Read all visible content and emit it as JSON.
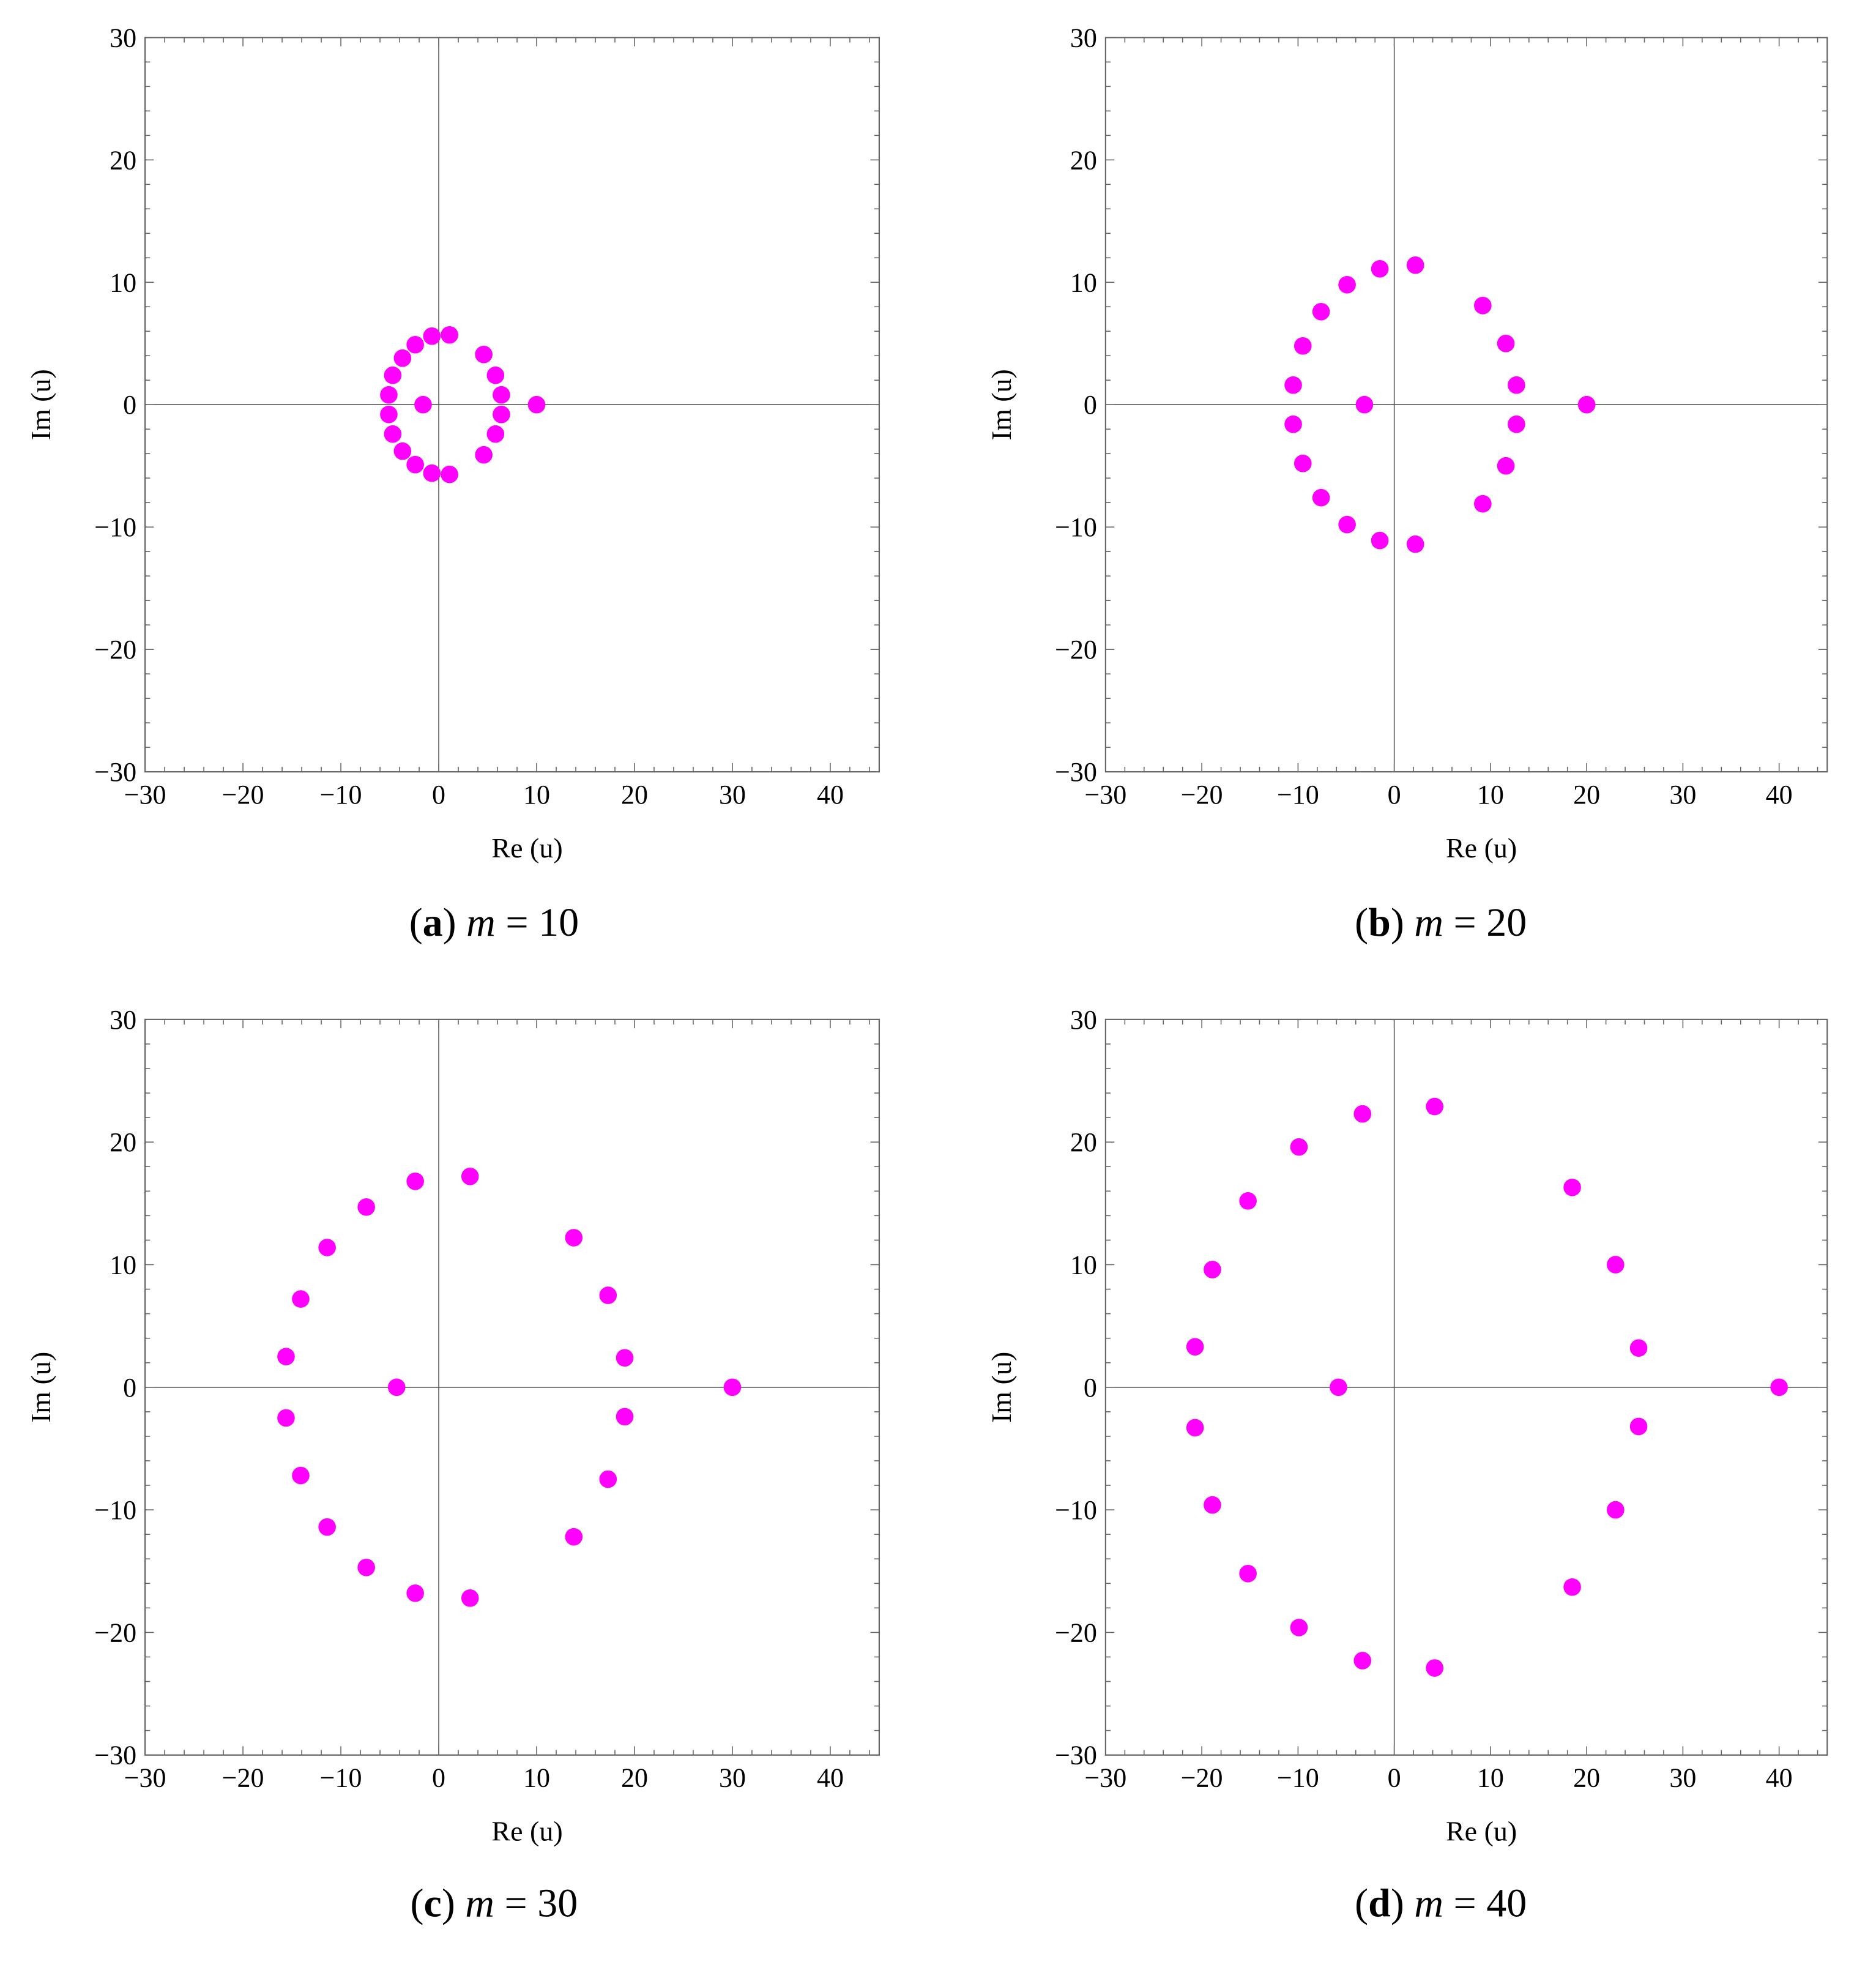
{
  "marker_color": "#ff00ff",
  "chart_data": [
    {
      "type": "scatter",
      "caption_letter": "a",
      "caption_var": "m",
      "caption_value": "10",
      "xlabel": "Re (u)",
      "ylabel": "Im (u)",
      "xlim": [
        -30,
        45
      ],
      "ylim": [
        -30,
        30
      ],
      "xticks": [
        -30,
        -20,
        -10,
        0,
        10,
        20,
        30,
        40
      ],
      "yticks": [
        -30,
        -20,
        -10,
        0,
        10,
        20,
        30
      ],
      "grid": false,
      "points": [
        [
          10,
          0
        ],
        [
          -1.6,
          0
        ],
        [
          1.1,
          5.7
        ],
        [
          -0.7,
          5.6
        ],
        [
          -2.4,
          4.9
        ],
        [
          -3.7,
          3.8
        ],
        [
          -4.7,
          2.4
        ],
        [
          -5.1,
          0.8
        ],
        [
          -5.1,
          -0.8
        ],
        [
          -4.7,
          -2.4
        ],
        [
          -3.7,
          -3.8
        ],
        [
          -2.4,
          -4.9
        ],
        [
          -0.7,
          -5.6
        ],
        [
          1.1,
          -5.7
        ],
        [
          4.6,
          4.1
        ],
        [
          5.8,
          2.4
        ],
        [
          6.4,
          0.8
        ],
        [
          6.4,
          -0.8
        ],
        [
          5.8,
          -2.4
        ],
        [
          4.6,
          -4.1
        ]
      ]
    },
    {
      "type": "scatter",
      "caption_letter": "b",
      "caption_var": "m",
      "caption_value": "20",
      "xlabel": "Re (u)",
      "ylabel": "Im (u)",
      "xlim": [
        -30,
        45
      ],
      "ylim": [
        -30,
        30
      ],
      "xticks": [
        -30,
        -20,
        -10,
        0,
        10,
        20,
        30,
        40
      ],
      "yticks": [
        -30,
        -20,
        -10,
        0,
        10,
        20,
        30
      ],
      "grid": false,
      "points": [
        [
          20,
          0
        ],
        [
          -3.1,
          0
        ],
        [
          2.2,
          11.4
        ],
        [
          -1.5,
          11.1
        ],
        [
          -4.9,
          9.8
        ],
        [
          -7.6,
          7.6
        ],
        [
          -9.5,
          4.8
        ],
        [
          -10.5,
          1.6
        ],
        [
          -10.5,
          -1.6
        ],
        [
          -9.5,
          -4.8
        ],
        [
          -7.6,
          -7.6
        ],
        [
          -4.9,
          -9.8
        ],
        [
          -1.5,
          -11.1
        ],
        [
          2.2,
          -11.4
        ],
        [
          9.2,
          8.1
        ],
        [
          11.6,
          5.0
        ],
        [
          12.7,
          1.6
        ],
        [
          12.7,
          -1.6
        ],
        [
          11.6,
          -5.0
        ],
        [
          9.2,
          -8.1
        ]
      ]
    },
    {
      "type": "scatter",
      "caption_letter": "c",
      "caption_var": "m",
      "caption_value": "30",
      "xlabel": "Re (u)",
      "ylabel": "Im (u)",
      "xlim": [
        -30,
        45
      ],
      "ylim": [
        -30,
        30
      ],
      "xticks": [
        -30,
        -20,
        -10,
        0,
        10,
        20,
        30,
        40
      ],
      "yticks": [
        -30,
        -20,
        -10,
        0,
        10,
        20,
        30
      ],
      "grid": false,
      "points": [
        [
          30,
          0
        ],
        [
          -4.3,
          0
        ],
        [
          3.2,
          17.2
        ],
        [
          -2.4,
          16.8
        ],
        [
          -7.4,
          14.7
        ],
        [
          -11.4,
          11.4
        ],
        [
          -14.1,
          7.2
        ],
        [
          -15.6,
          2.5
        ],
        [
          -15.6,
          -2.5
        ],
        [
          -14.1,
          -7.2
        ],
        [
          -11.4,
          -11.4
        ],
        [
          -7.4,
          -14.7
        ],
        [
          -2.4,
          -16.8
        ],
        [
          3.2,
          -17.2
        ],
        [
          13.8,
          12.2
        ],
        [
          17.3,
          7.5
        ],
        [
          19.0,
          2.4
        ],
        [
          19.0,
          -2.4
        ],
        [
          17.3,
          -7.5
        ],
        [
          13.8,
          -12.2
        ]
      ]
    },
    {
      "type": "scatter",
      "caption_letter": "d",
      "caption_var": "m",
      "caption_value": "40",
      "xlabel": "Re (u)",
      "ylabel": "Im (u)",
      "xlim": [
        -30,
        45
      ],
      "ylim": [
        -30,
        30
      ],
      "xticks": [
        -30,
        -20,
        -10,
        0,
        10,
        20,
        30,
        40
      ],
      "yticks": [
        -30,
        -20,
        -10,
        0,
        10,
        20,
        30
      ],
      "grid": false,
      "points": [
        [
          40,
          0
        ],
        [
          -5.8,
          0
        ],
        [
          4.2,
          22.9
        ],
        [
          -3.3,
          22.3
        ],
        [
          -9.9,
          19.6
        ],
        [
          -15.2,
          15.2
        ],
        [
          -18.9,
          9.6
        ],
        [
          -20.7,
          3.3
        ],
        [
          -20.7,
          -3.3
        ],
        [
          -18.9,
          -9.6
        ],
        [
          -15.2,
          -15.2
        ],
        [
          -9.9,
          -19.6
        ],
        [
          -3.3,
          -22.3
        ],
        [
          4.2,
          -22.9
        ],
        [
          18.5,
          16.3
        ],
        [
          23.0,
          10.0
        ],
        [
          25.4,
          3.2
        ],
        [
          25.4,
          -3.2
        ],
        [
          23.0,
          -10.0
        ],
        [
          18.5,
          -16.3
        ]
      ]
    }
  ]
}
